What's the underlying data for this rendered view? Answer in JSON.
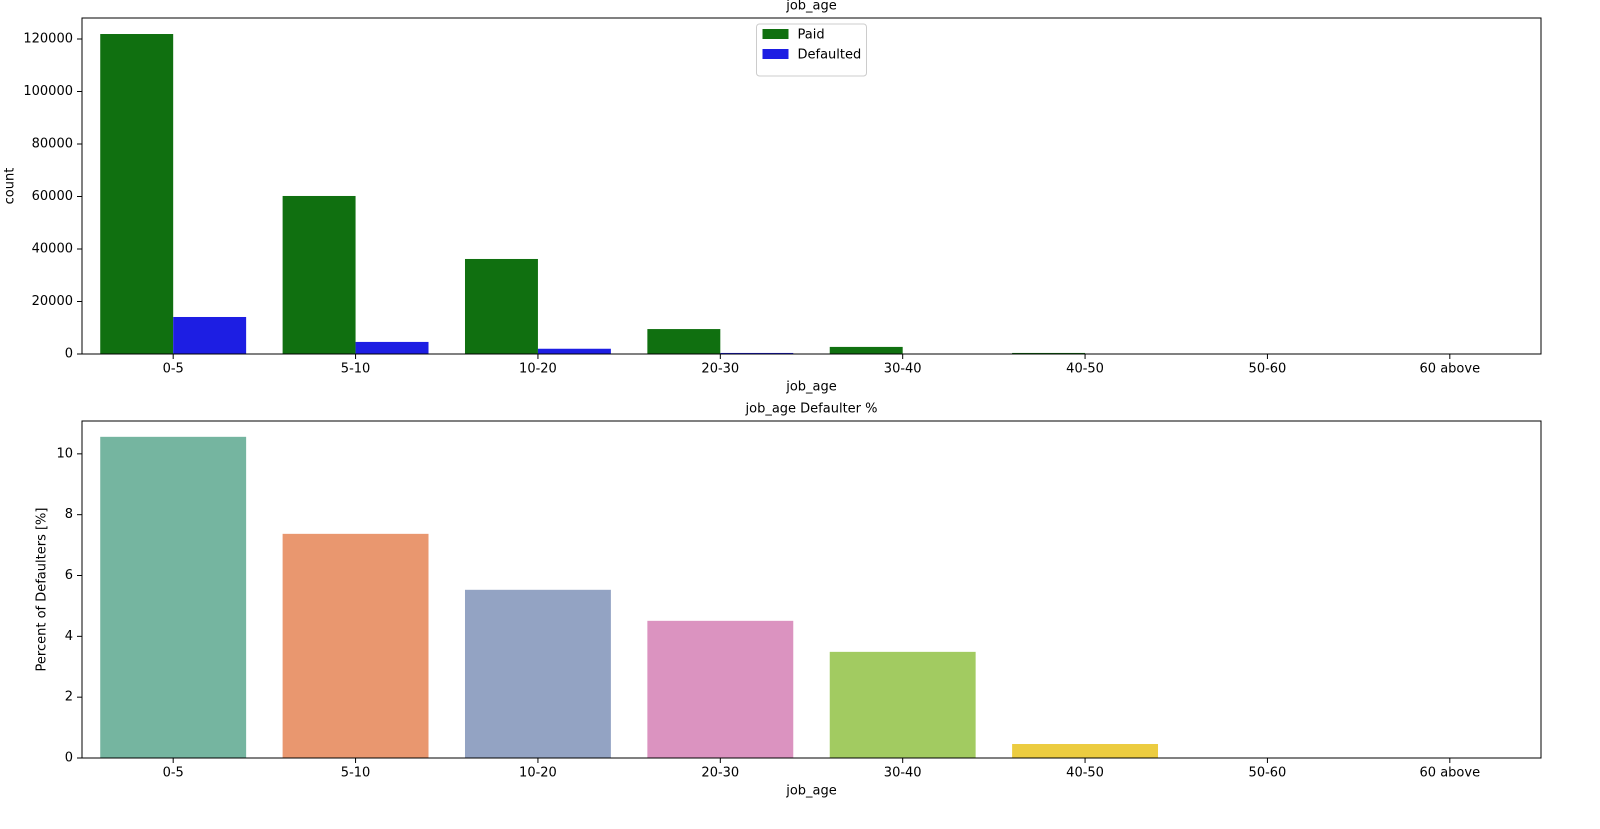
{
  "chart_data": [
    {
      "type": "grouped_bar",
      "title": "job_age",
      "xlabel": "job_age",
      "ylabel": "count",
      "categories": [
        "0-5",
        "5-10",
        "10-20",
        "20-30",
        "30-40",
        "40-50",
        "50-60",
        "60 above"
      ],
      "series": [
        {
          "name": "Paid",
          "color": "#107010",
          "values": [
            121900,
            60200,
            36200,
            9500,
            2700,
            400,
            0,
            0
          ]
        },
        {
          "name": "Defaulted",
          "color": "#1d1ee3",
          "values": [
            14100,
            4600,
            2000,
            400,
            100,
            20,
            0,
            0
          ]
        }
      ],
      "ylim": [
        0,
        128000
      ],
      "yticks": [
        0,
        20000,
        40000,
        60000,
        80000,
        100000,
        120000
      ],
      "legend": "upper center"
    },
    {
      "type": "bar",
      "title": "job_age Defaulter %",
      "xlabel": "job_age",
      "ylabel": "Percent of Defaulters [%]",
      "categories": [
        "0-5",
        "5-10",
        "10-20",
        "20-30",
        "30-40",
        "40-50",
        "50-60",
        "60 above"
      ],
      "values": [
        10.56,
        7.37,
        5.53,
        4.51,
        3.49,
        0.46,
        0,
        0
      ],
      "colors": [
        "#75b5a0",
        "#e9976f",
        "#93a3c3",
        "#db93c0",
        "#a2cb61",
        "#eccc40",
        "#d8bf98",
        "#ababab"
      ],
      "ylim": [
        0,
        11.08
      ],
      "yticks": [
        0,
        2,
        4,
        6,
        8,
        10
      ]
    }
  ]
}
